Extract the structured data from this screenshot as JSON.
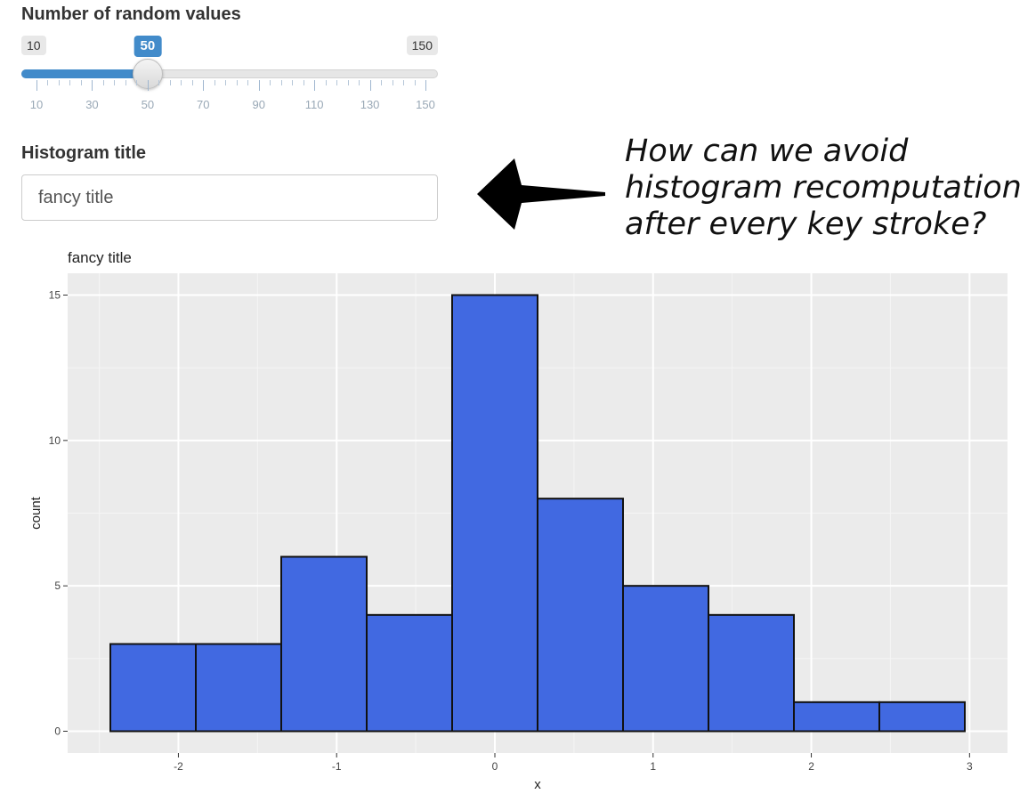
{
  "slider": {
    "label": "Number of random values",
    "min_label": "10",
    "max_label": "150",
    "value_label": "50",
    "min": 10,
    "max": 150,
    "value": 50,
    "major_ticks": [
      "10",
      "30",
      "50",
      "70",
      "90",
      "110",
      "130",
      "150"
    ],
    "accent_color": "#428bca"
  },
  "title_input": {
    "label": "Histogram title",
    "value": "fancy title"
  },
  "annotation": {
    "lines": [
      "How can we avoid",
      "histogram recomputation",
      "after every key stroke?"
    ],
    "arrow_icon": "left-arrow-icon"
  },
  "chart_data": {
    "type": "bar",
    "title": "fancy title",
    "xlabel": "x",
    "ylabel": "count",
    "bins": [
      {
        "x0": -2.43,
        "x1": -1.89,
        "count": 3
      },
      {
        "x0": -1.89,
        "x1": -1.35,
        "count": 3
      },
      {
        "x0": -1.35,
        "x1": -0.81,
        "count": 6
      },
      {
        "x0": -0.81,
        "x1": -0.27,
        "count": 4
      },
      {
        "x0": -0.27,
        "x1": 0.27,
        "count": 15
      },
      {
        "x0": 0.27,
        "x1": 0.81,
        "count": 8
      },
      {
        "x0": 0.81,
        "x1": 1.35,
        "count": 5
      },
      {
        "x0": 1.35,
        "x1": 1.89,
        "count": 4
      },
      {
        "x0": 1.89,
        "x1": 2.43,
        "count": 1
      },
      {
        "x0": 2.43,
        "x1": 2.97,
        "count": 1
      }
    ],
    "xlim": [
      -2.7,
      3.24
    ],
    "ylim": [
      -0.75,
      15.75
    ],
    "xticks": [
      -2,
      -1,
      0,
      1,
      2,
      3
    ],
    "xtick_labels": [
      "-2",
      "-1",
      "0",
      "1",
      "2",
      "3"
    ],
    "yticks": [
      0,
      5,
      10,
      15
    ],
    "ytick_labels": [
      "0",
      "5",
      "10",
      "15"
    ],
    "grid": true,
    "bar_fill": "#4169e1",
    "bar_stroke": "#111111",
    "panel_background": "#ebebeb"
  }
}
